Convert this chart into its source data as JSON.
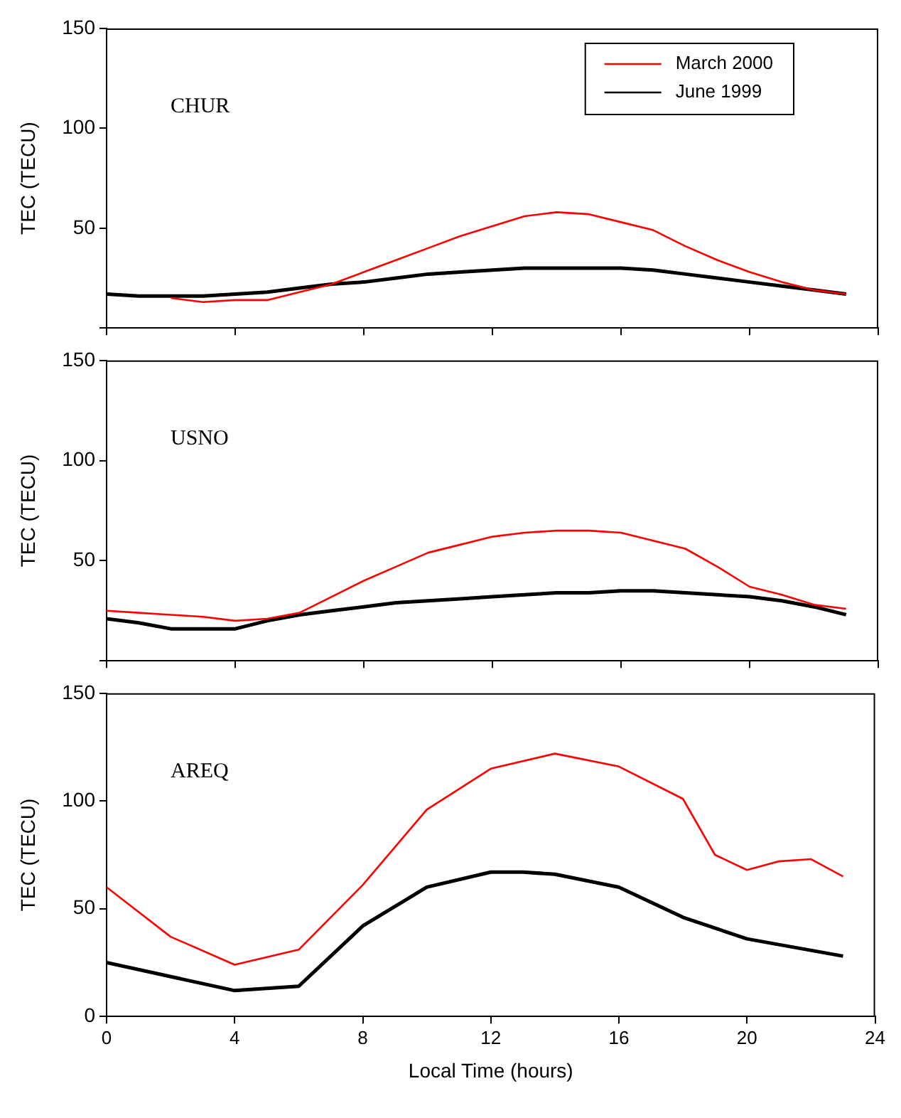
{
  "chart_data": [
    {
      "type": "line",
      "annotations": [
        "CHUR"
      ],
      "ylabel": "TEC (TECU)",
      "xlim": [
        0,
        24
      ],
      "xticks": [
        0,
        4,
        8,
        12,
        16,
        20,
        24
      ],
      "ylim": [
        0,
        150
      ],
      "yticks": [
        {
          "value": 0,
          "label": null
        },
        50,
        100,
        150
      ],
      "tick_labels": "y",
      "legend": "top right",
      "grid": false,
      "marker": "none",
      "line_style": "solid",
      "series": [
        {
          "name": "March 2000",
          "color": "#ff0000",
          "x": [
            2,
            3,
            4,
            5,
            6,
            7,
            8,
            9,
            10,
            11,
            12,
            13,
            14,
            15,
            16,
            17,
            18,
            19,
            20,
            21,
            22,
            23
          ],
          "values": [
            15,
            13,
            14,
            14,
            18,
            22,
            28,
            34,
            40,
            46,
            51,
            56,
            58,
            57,
            53,
            49,
            41,
            34,
            28,
            23,
            19,
            17
          ]
        },
        {
          "name": "June 1999",
          "color": "#000000",
          "x": [
            0,
            1,
            2,
            3,
            4,
            5,
            6,
            7,
            8,
            9,
            10,
            11,
            12,
            13,
            14,
            15,
            16,
            17,
            18,
            19,
            20,
            21,
            22,
            23
          ],
          "values": [
            17,
            16,
            16,
            16,
            17,
            18,
            20,
            22,
            23,
            25,
            27,
            28,
            29,
            30,
            30,
            30,
            30,
            29,
            27,
            25,
            23,
            21,
            19,
            17
          ]
        }
      ]
    },
    {
      "type": "line",
      "annotations": [
        "USNO"
      ],
      "ylabel": "TEC (TECU)",
      "xlim": [
        0,
        24
      ],
      "xticks": [
        0,
        4,
        8,
        12,
        16,
        20,
        24
      ],
      "ylim": [
        0,
        150
      ],
      "yticks": [
        {
          "value": 0,
          "label": null
        },
        50,
        100,
        150
      ],
      "tick_labels": "y",
      "grid": false,
      "marker": "none",
      "line_style": "solid",
      "series": [
        {
          "color": "#ff0000",
          "x": [
            0,
            1,
            2,
            3,
            4,
            5,
            6,
            7,
            8,
            9,
            10,
            11,
            12,
            13,
            14,
            15,
            16,
            17,
            18,
            19,
            20,
            21,
            22,
            23
          ],
          "values": [
            25,
            24,
            23,
            22,
            20,
            21,
            24,
            32,
            40,
            47,
            54,
            58,
            62,
            64,
            65,
            65,
            64,
            60,
            56,
            47,
            37,
            33,
            28,
            26
          ]
        },
        {
          "color": "#000000",
          "x": [
            0,
            1,
            2,
            3,
            4,
            5,
            6,
            7,
            8,
            9,
            10,
            11,
            12,
            13,
            14,
            15,
            16,
            17,
            18,
            19,
            20,
            21,
            22,
            23
          ],
          "values": [
            21,
            19,
            16,
            16,
            16,
            20,
            23,
            25,
            27,
            29,
            30,
            31,
            32,
            33,
            34,
            34,
            35,
            35,
            34,
            33,
            32,
            30,
            27,
            23
          ]
        }
      ]
    },
    {
      "type": "line",
      "annotations": [
        "AREQ"
      ],
      "ylabel": "TEC (TECU)",
      "xlabel": "Local Time (hours)",
      "xlim": [
        0,
        24
      ],
      "xticks": [
        0,
        4,
        8,
        12,
        16,
        20,
        24
      ],
      "ylim": [
        0,
        150
      ],
      "yticks": [
        0,
        50,
        100,
        150
      ],
      "grid": false,
      "marker": "none",
      "line_style": "solid",
      "series": [
        {
          "color": "#ff0000",
          "x": [
            0,
            2,
            4,
            6,
            8,
            10,
            12,
            14,
            16,
            18,
            19,
            20,
            21,
            22,
            23
          ],
          "values": [
            60,
            37,
            24,
            31,
            61,
            96,
            115,
            122,
            116,
            101,
            75,
            68,
            72,
            73,
            65
          ]
        },
        {
          "color": "#000000",
          "x": [
            0,
            4,
            6,
            8,
            10,
            12,
            13,
            14,
            16,
            18,
            20,
            23
          ],
          "values": [
            25,
            12,
            14,
            42,
            60,
            67,
            67,
            66,
            60,
            46,
            36,
            28
          ]
        }
      ]
    }
  ]
}
